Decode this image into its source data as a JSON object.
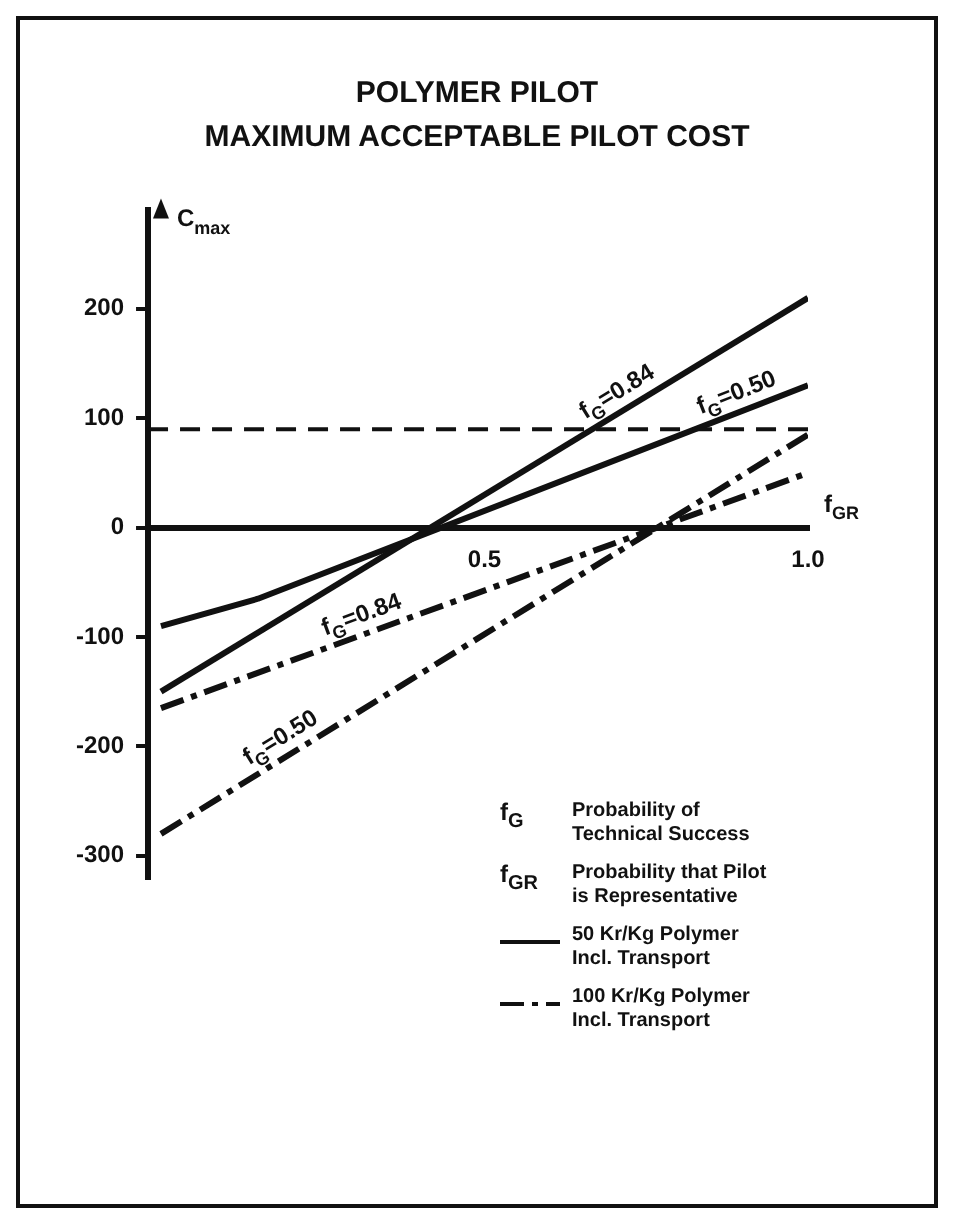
{
  "chart_data": {
    "type": "line",
    "title": "POLYMER PILOT",
    "subtitle": "MAXIMUM ACCEPTABLE PILOT COST",
    "xlabel": "f$_{GR}$",
    "ylabel": "C$_{max}$",
    "xlim": [
      -0.02,
      1.0
    ],
    "xticks": [
      0.5,
      {
        "value": 1.0,
        "label": "1.0"
      }
    ],
    "ylim": [
      -320,
      290
    ],
    "yticks": [
      -300,
      -200,
      -100,
      0,
      100,
      200
    ],
    "grid": false,
    "marker": "none",
    "series": [
      {
        "name": "f$_{G}$=0.84",
        "color": "#111111",
        "line_style": "solid",
        "x": [
          0,
          1.0
        ],
        "values": [
          -150,
          210
        ]
      },
      {
        "name": "f$_{G}$=0.50",
        "color": "#111111",
        "line_style": "solid",
        "x": [
          0,
          0.15,
          1.0
        ],
        "values": [
          -90,
          -65,
          130
        ]
      },
      {
        "name": "f$_{G}$=0.84",
        "color": "#111111",
        "line_style": "dashdot",
        "x": [
          0,
          1.0
        ],
        "values": [
          -165,
          50
        ]
      },
      {
        "name": "f$_{G}$=0.50",
        "color": "#111111",
        "line_style": "dashdot",
        "x": [
          0,
          1.0
        ],
        "values": [
          -280,
          85
        ]
      }
    ],
    "ref_lines": [
      {
        "axis": "y",
        "value": 90,
        "color": "#111111",
        "line_style": "dashed"
      }
    ],
    "annotations": [
      "f$_{G}$",
      "Probability of Technical Success",
      "f$_{GR}$",
      "Probability that Pilot is Representative",
      "50 Kr/Kg Polymer Incl. Transport",
      "100 Kr/Kg Polymer Incl. Transport"
    ]
  }
}
